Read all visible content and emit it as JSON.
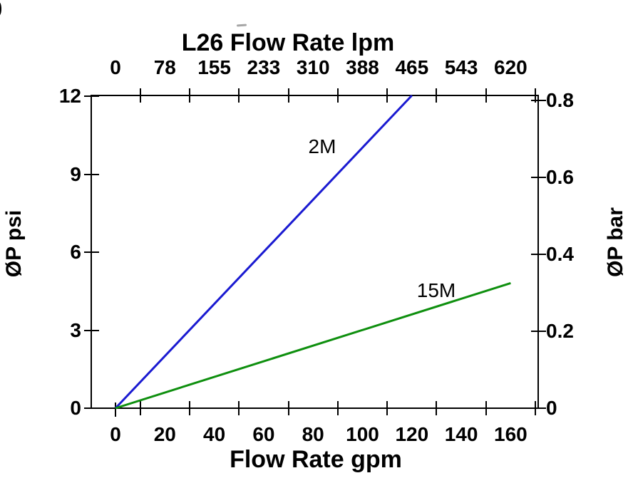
{
  "artifacts": {
    "clipped_glyph": "0"
  },
  "colors": {
    "axis": "#000000",
    "background": "#ffffff",
    "series_2m": "#1a1ad1",
    "series_15m": "#0e8f0e",
    "smudge": "#a6a6a6"
  },
  "chart_data": {
    "type": "line",
    "title": "L26 Flow Rate lpm",
    "grid": false,
    "legend": "inline-labels",
    "x_axis_top": {
      "label": "L26 Flow Rate lpm",
      "tick_labels": [
        "0",
        "78",
        "155",
        "233",
        "310",
        "388",
        "465",
        "543",
        "620"
      ]
    },
    "x_axis_bottom": {
      "label": "Flow Rate gpm",
      "tick_labels": [
        "0",
        "20",
        "40",
        "60",
        "80",
        "100",
        "120",
        "140",
        "160"
      ],
      "range": [
        0,
        160
      ]
    },
    "y_axis_left": {
      "label": "ØP psi",
      "tick_labels": [
        "12",
        "9",
        "6",
        "3",
        "0"
      ],
      "range": [
        0,
        12
      ]
    },
    "y_axis_right": {
      "label": "ØP bar",
      "tick_labels": [
        "0.8",
        "0.6",
        "0.4",
        "0.2",
        "0"
      ],
      "range": [
        0,
        0.8
      ]
    },
    "series": [
      {
        "name": "2M",
        "color": "#1a1ad1",
        "slope_psi_per_gpm": 0.1,
        "points_gpm_psi": [
          [
            0,
            0
          ],
          [
            120,
            12
          ]
        ]
      },
      {
        "name": "15M",
        "color": "#0e8f0e",
        "slope_psi_per_gpm": 0.03,
        "points_gpm_psi": [
          [
            0,
            0
          ],
          [
            160,
            4.8
          ]
        ]
      }
    ]
  }
}
